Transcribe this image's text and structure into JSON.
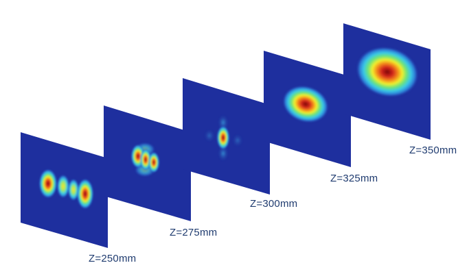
{
  "planes": [
    {
      "label": "Z=250mm",
      "pattern": "four-lobes"
    },
    {
      "label": "Z=275mm",
      "pattern": "three-lobes"
    },
    {
      "label": "Z=300mm",
      "pattern": "single-spot"
    },
    {
      "label": "Z=325mm",
      "pattern": "ellipse"
    },
    {
      "label": "Z=350mm",
      "pattern": "ellipse-large"
    }
  ],
  "colors": {
    "plane_background": "#1e2f9e",
    "colormap": [
      "#1e2f9e",
      "#2a7bd6",
      "#3fd3e6",
      "#7ce66a",
      "#f4f02a",
      "#f7a21b",
      "#e5381c",
      "#8c0c0c"
    ],
    "label_text": "#1f3b6f"
  }
}
